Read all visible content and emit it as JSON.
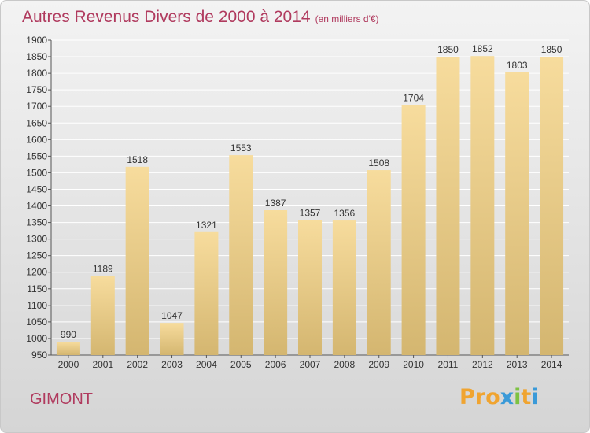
{
  "title": "Autres Revenus Divers de 2000 à 2014",
  "subtitle": "(en milliers d'€)",
  "city": "GIMONT",
  "logo": {
    "text": "Proxiti",
    "letters": [
      "P",
      "r",
      "o",
      "x",
      "i",
      "t",
      "i"
    ]
  },
  "colors": {
    "title": "#b03a5e",
    "bar_light": "#f7dc9d",
    "bar_dark": "#d4b670",
    "grid": "#ffffff",
    "logo": [
      "#f0a430",
      "#f0a430",
      "#f0a430",
      "#3a9ad8",
      "#7dc242",
      "#f0a430",
      "#3a9ad8"
    ]
  },
  "chart_data": {
    "type": "bar",
    "title": "Autres Revenus Divers de 2000 à 2014",
    "subtitle": "(en milliers d'€)",
    "categories": [
      "2000",
      "2001",
      "2002",
      "2003",
      "2004",
      "2005",
      "2006",
      "2007",
      "2008",
      "2009",
      "2010",
      "2011",
      "2012",
      "2013",
      "2014"
    ],
    "values": [
      990,
      1189,
      1518,
      1047,
      1321,
      1553,
      1387,
      1357,
      1356,
      1508,
      1704,
      1850,
      1852,
      1803,
      1850
    ],
    "ylim": [
      950,
      1900
    ],
    "yticks": [
      950,
      1000,
      1050,
      1100,
      1150,
      1200,
      1250,
      1300,
      1350,
      1400,
      1450,
      1500,
      1550,
      1600,
      1650,
      1700,
      1750,
      1800,
      1850,
      1900
    ],
    "xlabel": "",
    "ylabel": "",
    "grid": true
  }
}
